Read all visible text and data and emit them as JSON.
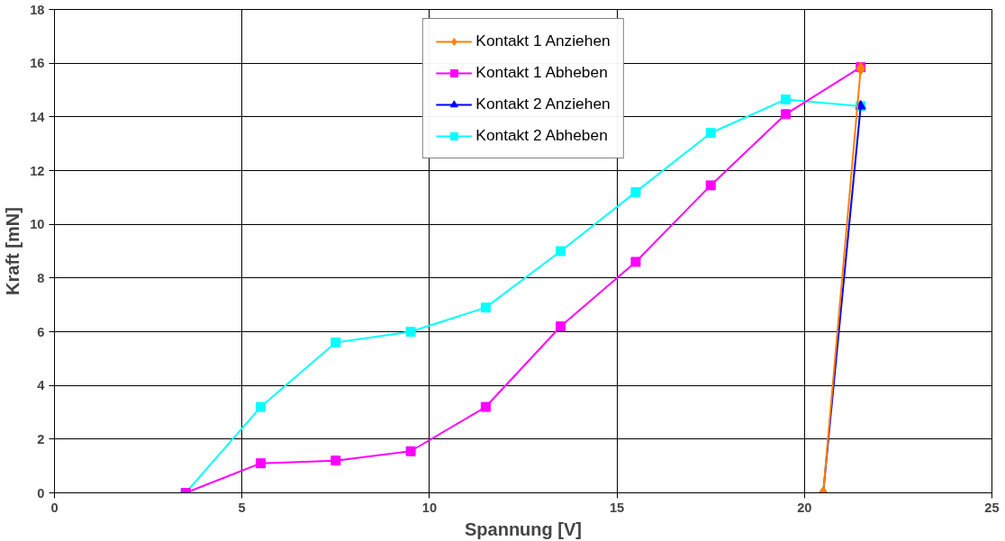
{
  "chart_data": {
    "type": "line",
    "xlabel": "Spannung [V]",
    "ylabel": "Kraft [mN]",
    "xlim": [
      0,
      25
    ],
    "ylim": [
      0,
      18
    ],
    "xticks": [
      0,
      5,
      10,
      15,
      20,
      25
    ],
    "yticks": [
      0,
      2,
      4,
      6,
      8,
      10,
      12,
      14,
      16,
      18
    ],
    "grid": true,
    "legend": "top",
    "line_style": "solid",
    "series": [
      {
        "name": "Kontakt 1 Anziehen",
        "color": "#ff7f00",
        "marker": "diamond",
        "x": [
          20.5,
          21.5
        ],
        "values": [
          0,
          15.8
        ]
      },
      {
        "name": "Kontakt 1 Abheben",
        "color": "#ff00ff",
        "marker": "square",
        "x": [
          3.5,
          5.5,
          7.5,
          9.5,
          11.5,
          13.5,
          15.5,
          17.5,
          19.5,
          21.5
        ],
        "values": [
          0,
          1.1,
          1.2,
          1.55,
          3.2,
          6.2,
          8.6,
          11.45,
          14.1,
          15.85
        ]
      },
      {
        "name": "Kontakt 2 Anziehen",
        "color": "#0000ff",
        "marker": "triangle",
        "x": [
          20.5,
          21.5
        ],
        "values": [
          0,
          14.4
        ]
      },
      {
        "name": "Kontakt 2 Abheben",
        "color": "#00ffff",
        "marker": "square",
        "x": [
          3.5,
          5.5,
          7.5,
          9.5,
          11.5,
          13.5,
          15.5,
          17.5,
          19.5,
          21.5
        ],
        "values": [
          0,
          3.2,
          5.6,
          6.0,
          6.9,
          9.0,
          11.2,
          13.4,
          14.65,
          14.4
        ]
      }
    ]
  }
}
